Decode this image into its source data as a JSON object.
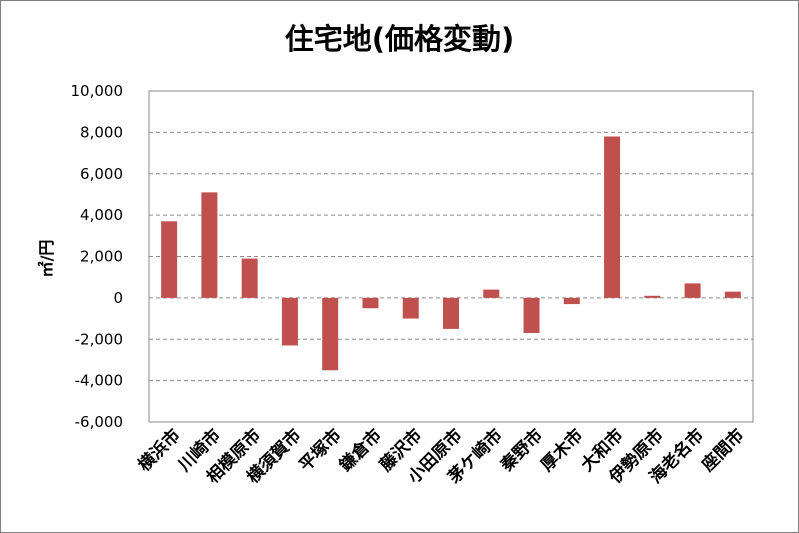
{
  "chart_data": {
    "type": "bar",
    "title": "住宅地(価格変動)",
    "ylabel": "㎡/円",
    "xlabel": "",
    "ylim": [
      -6000,
      10000
    ],
    "yticks": [
      10000,
      8000,
      6000,
      4000,
      2000,
      0,
      -2000,
      -4000,
      -6000
    ],
    "ytick_labels": [
      "10,000",
      "8,000",
      "6,000",
      "4,000",
      "2,000",
      "0",
      "-2,000",
      "-4,000",
      "-6,000"
    ],
    "grid": true,
    "legend": "none",
    "bar_color": "#c0504d",
    "categories": [
      "横浜市",
      "川崎市",
      "相模原市",
      "横須賀市",
      "平塚市",
      "鎌倉市",
      "藤沢市",
      "小田原市",
      "茅ケ崎市",
      "秦野市",
      "厚木市",
      "大和市",
      "伊勢原市",
      "海老名市",
      "座間市"
    ],
    "values": [
      3700,
      5100,
      1900,
      -2300,
      -3500,
      -500,
      -1000,
      -1500,
      400,
      -1700,
      -300,
      7800,
      100,
      700,
      300
    ]
  }
}
